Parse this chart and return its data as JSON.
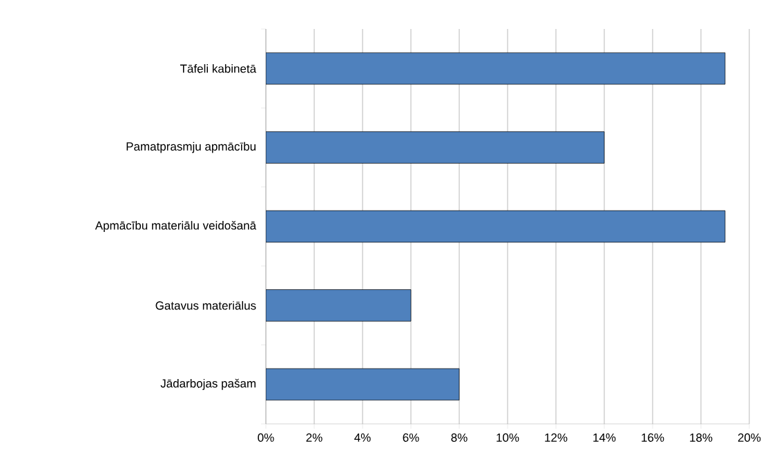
{
  "chart_data": {
    "type": "bar",
    "orientation": "horizontal",
    "categories": [
      "Tāfeli kabinetā",
      "Pamatprasmju apmācību",
      "Apmācību materiālu veidošanā",
      "Gatavus materiālus",
      "Jādarbojas pašam"
    ],
    "values": [
      19,
      14,
      19,
      6,
      8
    ],
    "color": "#4f81bd",
    "xlim": [
      0,
      20
    ],
    "xticks": [
      {
        "value": 0,
        "label": "0%"
      },
      {
        "value": 2,
        "label": "2%"
      },
      {
        "value": 4,
        "label": "4%"
      },
      {
        "value": 6,
        "label": "6%"
      },
      {
        "value": 8,
        "label": "8%"
      },
      {
        "value": 10,
        "label": "10%"
      },
      {
        "value": 12,
        "label": "12%"
      },
      {
        "value": 14,
        "label": "14%"
      },
      {
        "value": 16,
        "label": "16%"
      },
      {
        "value": 18,
        "label": "18%"
      },
      {
        "value": 20,
        "label": "20%"
      }
    ],
    "grid": "x"
  }
}
